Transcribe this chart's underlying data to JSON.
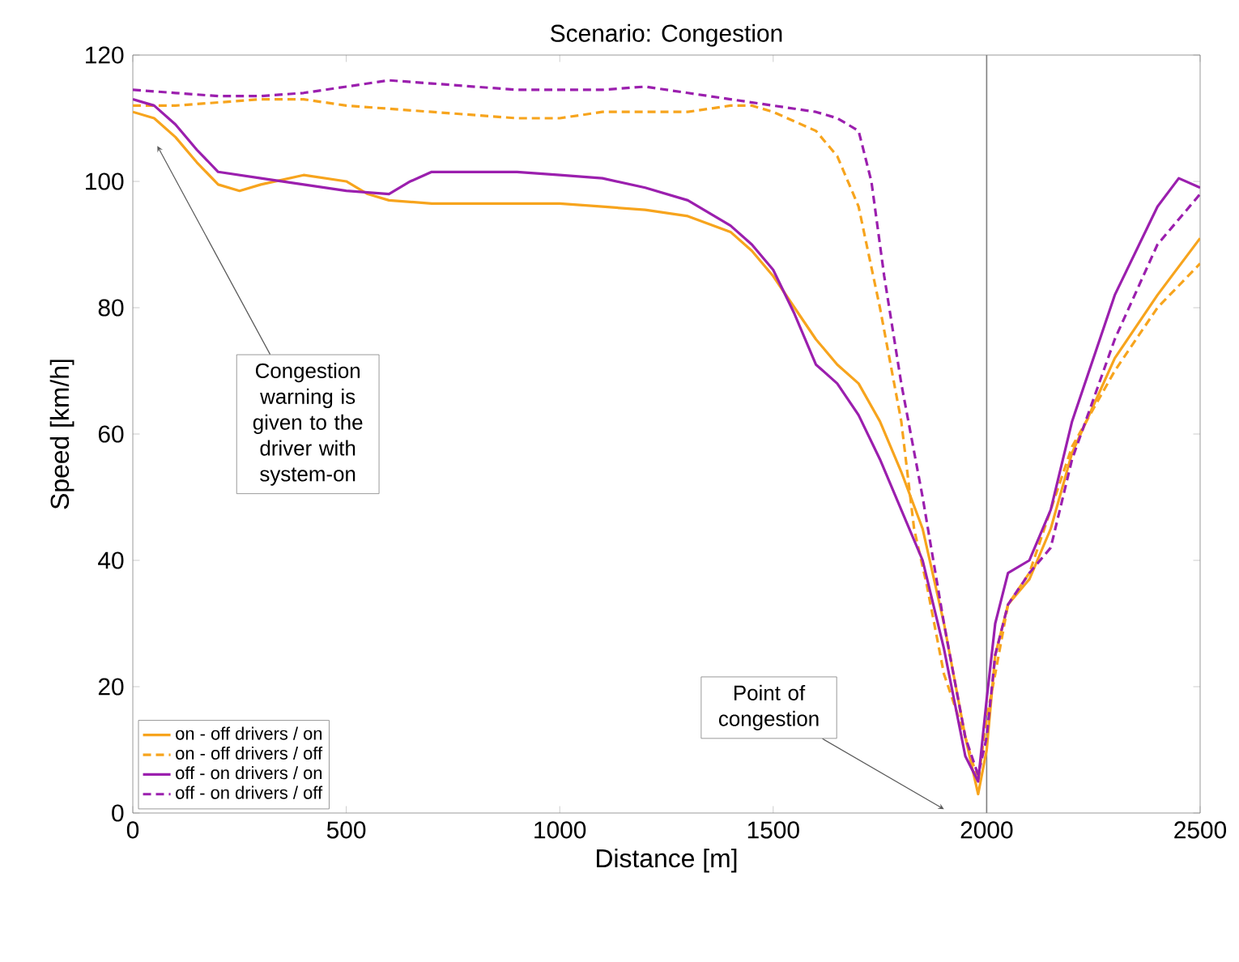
{
  "chart_data": {
    "type": "line",
    "title": "Scenario: Congestion",
    "xlabel": "Distance [m]",
    "ylabel": "Speed [km/h]",
    "xlim": [
      0,
      2500
    ],
    "xticks": [
      0,
      500,
      1000,
      1500,
      2000,
      2500
    ],
    "ylim": [
      0,
      120
    ],
    "yticks": [
      0,
      20,
      40,
      60,
      80,
      100,
      120
    ],
    "grid": false,
    "legend": "bottom left",
    "marker": "none",
    "ref_lines": [
      {
        "axis": "x",
        "value": 2000,
        "color": "#808080",
        "line_style": "solid"
      }
    ],
    "annotations": [
      "Congestion warning is given to the driver with system-on",
      "Point of congestion"
    ],
    "series": [
      {
        "name": "on - off drivers / on",
        "color": "#f7a41d",
        "line_style": "solid",
        "x": [
          0,
          50,
          100,
          150,
          200,
          250,
          300,
          400,
          500,
          550,
          600,
          700,
          800,
          900,
          1000,
          1100,
          1200,
          1300,
          1400,
          1450,
          1500,
          1550,
          1600,
          1650,
          1700,
          1750,
          1800,
          1850,
          1900,
          1950,
          1980,
          2000,
          2020,
          2050,
          2100,
          2150,
          2200,
          2300,
          2400,
          2500
        ],
        "values": [
          111,
          110,
          107,
          103,
          99.5,
          98.5,
          99.5,
          101,
          100,
          98,
          97,
          96.5,
          96.5,
          96.5,
          96.5,
          96,
          95.5,
          94.5,
          92,
          89,
          85,
          80,
          75,
          71,
          68,
          62,
          54,
          45,
          30,
          12,
          3,
          10,
          25,
          33,
          37,
          45,
          57,
          72,
          82,
          91
        ]
      },
      {
        "name": "on - off drivers / off",
        "color": "#f7a41d",
        "line_style": "dashed",
        "x": [
          0,
          100,
          200,
          300,
          400,
          500,
          600,
          700,
          800,
          900,
          1000,
          1100,
          1200,
          1300,
          1400,
          1450,
          1500,
          1600,
          1650,
          1700,
          1750,
          1800,
          1830,
          1860,
          1900,
          1950,
          1980,
          2000,
          2020,
          2050,
          2100,
          2150,
          2200,
          2300,
          2400,
          2500
        ],
        "values": [
          112,
          112,
          112.5,
          113,
          113,
          112,
          111.5,
          111,
          110.5,
          110,
          110,
          111,
          111,
          111,
          112,
          112,
          111,
          108,
          104,
          96,
          80,
          62,
          45,
          36,
          22,
          12,
          5,
          15,
          22,
          33,
          38,
          48,
          58,
          70,
          80,
          87
        ]
      },
      {
        "name": "off - on drivers / on",
        "color": "#9b1fae",
        "line_style": "solid",
        "x": [
          0,
          50,
          100,
          150,
          200,
          300,
          400,
          500,
          600,
          650,
          700,
          800,
          900,
          1000,
          1100,
          1200,
          1300,
          1400,
          1450,
          1500,
          1550,
          1600,
          1650,
          1700,
          1750,
          1800,
          1850,
          1900,
          1950,
          1980,
          2000,
          2020,
          2050,
          2100,
          2150,
          2200,
          2300,
          2400,
          2450,
          2500
        ],
        "values": [
          113,
          112,
          109,
          105,
          101.5,
          100.5,
          99.5,
          98.5,
          98,
          100,
          101.5,
          101.5,
          101.5,
          101,
          100.5,
          99,
          97,
          93,
          90,
          86,
          79,
          71,
          68,
          63,
          56,
          48,
          40,
          26,
          9,
          5,
          18,
          30,
          38,
          40,
          48,
          62,
          82,
          96,
          100.5,
          99
        ]
      },
      {
        "name": "off - on drivers / off",
        "color": "#9b1fae",
        "line_style": "dashed",
        "x": [
          0,
          100,
          200,
          300,
          400,
          500,
          600,
          700,
          800,
          900,
          1000,
          1100,
          1200,
          1300,
          1400,
          1500,
          1600,
          1650,
          1700,
          1730,
          1760,
          1800,
          1850,
          1900,
          1950,
          1980,
          2000,
          2020,
          2050,
          2100,
          2150,
          2200,
          2300,
          2400,
          2500
        ],
        "values": [
          114.5,
          114,
          113.5,
          113.5,
          114,
          115,
          116,
          115.5,
          115,
          114.5,
          114.5,
          114.5,
          115,
          114,
          113,
          112,
          111,
          110,
          108,
          100,
          85,
          68,
          50,
          30,
          12,
          6,
          12,
          25,
          33,
          38,
          42,
          56,
          75,
          90,
          98
        ]
      }
    ]
  }
}
